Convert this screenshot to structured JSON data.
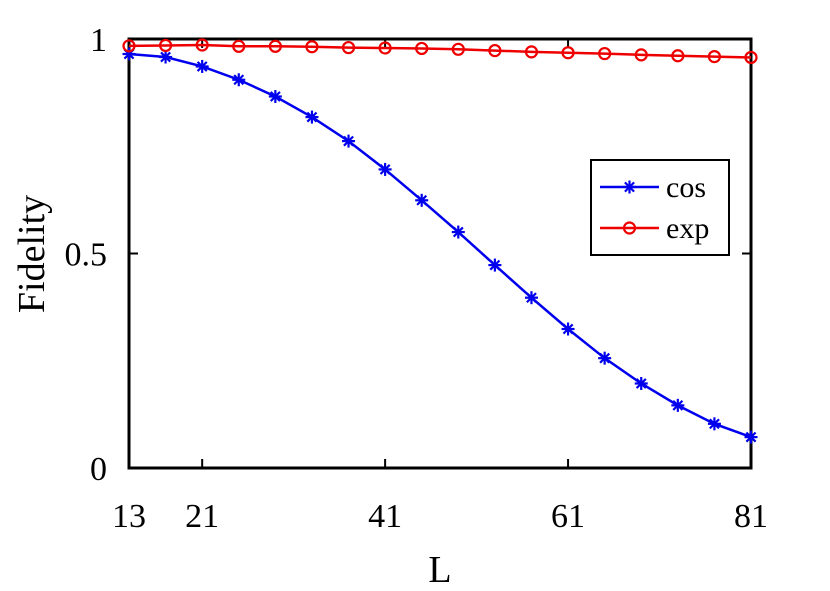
{
  "chart_data": {
    "type": "line",
    "xlabel": "L",
    "ylabel": "Fidelity",
    "xlim": [
      13,
      81
    ],
    "ylim": [
      0,
      1
    ],
    "xticks": [
      13,
      21,
      41,
      61,
      81
    ],
    "yticks": [
      0,
      0.5,
      1
    ],
    "xtick_labels": [
      "13",
      "21",
      "41",
      "61",
      "81"
    ],
    "ytick_labels": [
      "0",
      "0.5",
      "1"
    ],
    "grid": false,
    "legend_position": "right",
    "x": [
      13,
      17,
      21,
      25,
      29,
      33,
      37,
      41,
      45,
      49,
      53,
      57,
      61,
      65,
      69,
      73,
      77,
      81
    ],
    "series": [
      {
        "name": "cos",
        "color": "#0000ee",
        "marker": "asterisk",
        "values": [
          0.965,
          0.958,
          0.936,
          0.905,
          0.866,
          0.818,
          0.762,
          0.696,
          0.624,
          0.55,
          0.473,
          0.397,
          0.324,
          0.256,
          0.197,
          0.146,
          0.103,
          0.072
        ]
      },
      {
        "name": "exp",
        "color": "#ee0000",
        "marker": "circle",
        "values": [
          0.984,
          0.985,
          0.986,
          0.983,
          0.983,
          0.982,
          0.98,
          0.979,
          0.978,
          0.976,
          0.973,
          0.97,
          0.968,
          0.966,
          0.963,
          0.961,
          0.959,
          0.957
        ]
      }
    ]
  }
}
